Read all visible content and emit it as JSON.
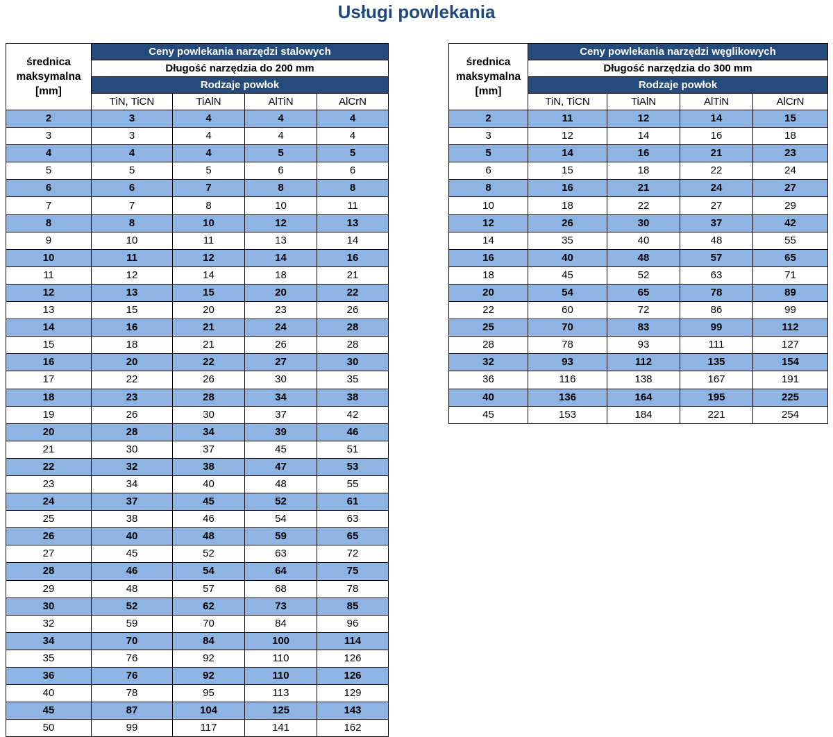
{
  "page": {
    "title": "Usługi powlekania"
  },
  "steel": {
    "diameter_header": [
      "średnica",
      "maksymalna",
      "[mm]"
    ],
    "title": "Ceny powlekania narzędzi stalowych",
    "length": "Długość narzędzia do 200 mm",
    "coatings_header": "Rodzaje powłok",
    "columns": [
      "TiN, TiCN",
      "TiAlN",
      "AlTiN",
      "AlCrN"
    ],
    "rows": [
      [
        "2",
        "3",
        "4",
        "4",
        "4"
      ],
      [
        "3",
        "3",
        "4",
        "4",
        "4"
      ],
      [
        "4",
        "4",
        "4",
        "5",
        "5"
      ],
      [
        "5",
        "5",
        "5",
        "6",
        "6"
      ],
      [
        "6",
        "6",
        "7",
        "8",
        "8"
      ],
      [
        "7",
        "7",
        "8",
        "10",
        "11"
      ],
      [
        "8",
        "8",
        "10",
        "12",
        "13"
      ],
      [
        "9",
        "10",
        "11",
        "13",
        "14"
      ],
      [
        "10",
        "11",
        "12",
        "14",
        "16"
      ],
      [
        "11",
        "12",
        "14",
        "18",
        "21"
      ],
      [
        "12",
        "13",
        "15",
        "20",
        "22"
      ],
      [
        "13",
        "15",
        "20",
        "23",
        "26"
      ],
      [
        "14",
        "16",
        "21",
        "24",
        "28"
      ],
      [
        "15",
        "18",
        "21",
        "26",
        "28"
      ],
      [
        "16",
        "20",
        "22",
        "27",
        "30"
      ],
      [
        "17",
        "22",
        "26",
        "30",
        "35"
      ],
      [
        "18",
        "23",
        "28",
        "34",
        "38"
      ],
      [
        "19",
        "26",
        "30",
        "37",
        "42"
      ],
      [
        "20",
        "28",
        "34",
        "39",
        "46"
      ],
      [
        "21",
        "30",
        "37",
        "45",
        "51"
      ],
      [
        "22",
        "32",
        "38",
        "47",
        "53"
      ],
      [
        "23",
        "34",
        "40",
        "48",
        "55"
      ],
      [
        "24",
        "37",
        "45",
        "52",
        "61"
      ],
      [
        "25",
        "38",
        "46",
        "54",
        "63"
      ],
      [
        "26",
        "40",
        "48",
        "59",
        "65"
      ],
      [
        "27",
        "45",
        "52",
        "63",
        "72"
      ],
      [
        "28",
        "46",
        "54",
        "64",
        "75"
      ],
      [
        "29",
        "48",
        "57",
        "68",
        "78"
      ],
      [
        "30",
        "52",
        "62",
        "73",
        "85"
      ],
      [
        "32",
        "59",
        "70",
        "84",
        "96"
      ],
      [
        "34",
        "70",
        "84",
        "100",
        "114"
      ],
      [
        "35",
        "76",
        "92",
        "110",
        "126"
      ],
      [
        "36",
        "76",
        "92",
        "110",
        "126"
      ],
      [
        "40",
        "78",
        "95",
        "113",
        "129"
      ],
      [
        "45",
        "87",
        "104",
        "125",
        "143"
      ],
      [
        "50",
        "99",
        "117",
        "141",
        "162"
      ]
    ]
  },
  "carbide": {
    "diameter_header": [
      "średnica",
      "maksymalna",
      "[mm]"
    ],
    "title": "Ceny powlekania narzędzi węglikowych",
    "length": "Długość narzędzia do 300 mm",
    "coatings_header": "Rodzaje powłok",
    "columns": [
      "TiN, TiCN",
      "TiAlN",
      "AlTiN",
      "AlCrN"
    ],
    "rows": [
      [
        "2",
        "11",
        "12",
        "14",
        "15"
      ],
      [
        "3",
        "12",
        "14",
        "16",
        "18"
      ],
      [
        "5",
        "14",
        "16",
        "21",
        "23"
      ],
      [
        "6",
        "15",
        "18",
        "22",
        "24"
      ],
      [
        "8",
        "16",
        "21",
        "24",
        "27"
      ],
      [
        "10",
        "18",
        "22",
        "27",
        "29"
      ],
      [
        "12",
        "26",
        "30",
        "37",
        "42"
      ],
      [
        "14",
        "35",
        "40",
        "48",
        "55"
      ],
      [
        "16",
        "40",
        "48",
        "57",
        "65"
      ],
      [
        "18",
        "45",
        "52",
        "63",
        "71"
      ],
      [
        "20",
        "54",
        "65",
        "78",
        "89"
      ],
      [
        "22",
        "60",
        "72",
        "86",
        "99"
      ],
      [
        "25",
        "70",
        "83",
        "99",
        "112"
      ],
      [
        "28",
        "78",
        "93",
        "111",
        "127"
      ],
      [
        "32",
        "93",
        "112",
        "135",
        "154"
      ],
      [
        "36",
        "116",
        "138",
        "167",
        "191"
      ],
      [
        "40",
        "136",
        "164",
        "195",
        "225"
      ],
      [
        "45",
        "153",
        "184",
        "221",
        "254"
      ]
    ]
  }
}
